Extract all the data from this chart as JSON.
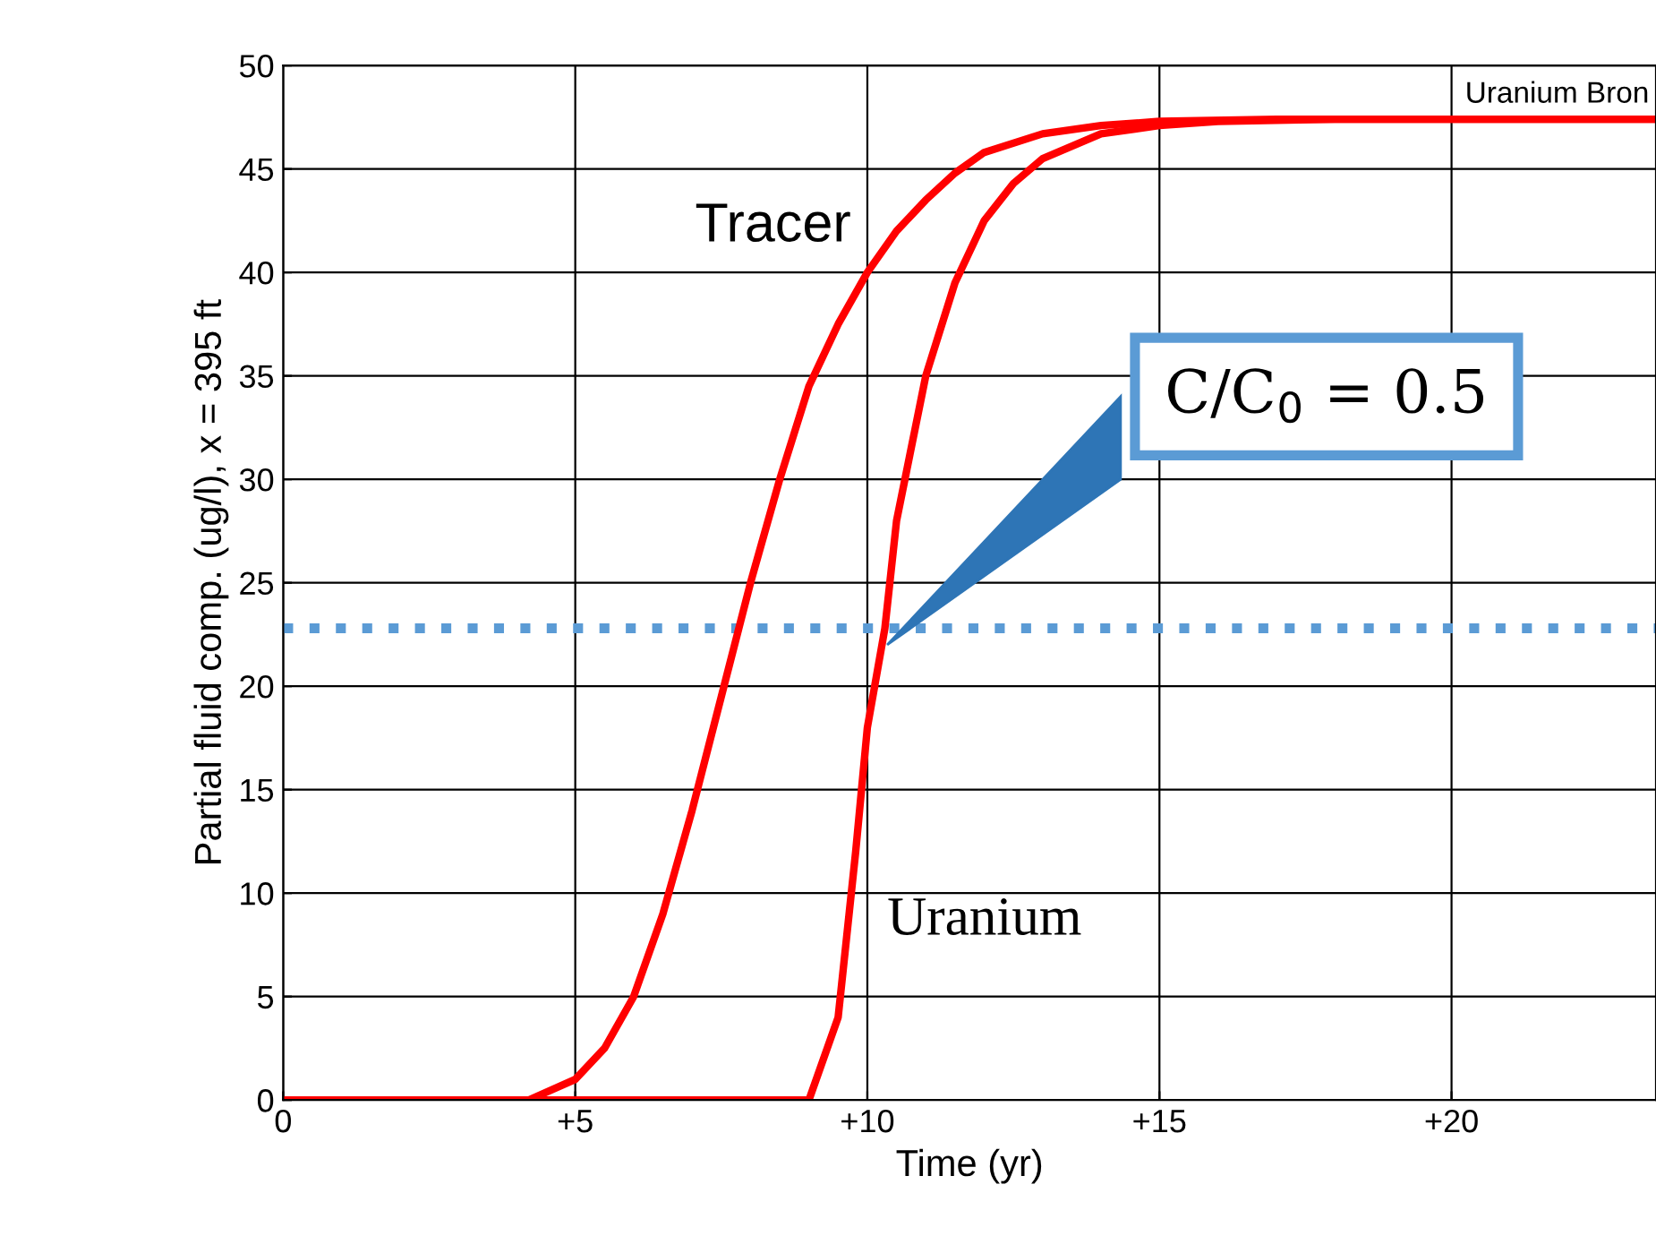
{
  "chart_data": {
    "type": "line",
    "xlabel": "Time (yr)",
    "ylabel": "Partial fluid comp. (ug/l), x = 395 ft",
    "xlim": [
      0,
      23.5
    ],
    "ylim": [
      0,
      50
    ],
    "xticks": [
      0,
      {
        "value": 5,
        "label": "+5"
      },
      {
        "value": 10,
        "label": "+10"
      },
      {
        "value": 15,
        "label": "+15"
      },
      {
        "value": 20,
        "label": "+20"
      }
    ],
    "yticks": [
      0,
      5,
      10,
      15,
      20,
      25,
      30,
      35,
      40,
      45,
      50
    ],
    "grid": true,
    "legend": false,
    "marker": "none",
    "line_style": "solid",
    "series": [
      {
        "name": "Tracer",
        "color": "#ff0000",
        "x": [
          0,
          4.2,
          5,
          5.5,
          6,
          6.5,
          7,
          7.5,
          8,
          8.5,
          9,
          9.5,
          10,
          10.5,
          11,
          11.5,
          12,
          13,
          14,
          15,
          17,
          23.5
        ],
        "values": [
          0,
          0,
          1,
          2.5,
          5,
          9,
          14,
          19.5,
          25,
          30,
          34.5,
          37.5,
          40,
          42,
          43.5,
          44.8,
          45.8,
          46.7,
          47.1,
          47.3,
          47.4,
          47.4
        ]
      },
      {
        "name": "Uranium",
        "color": "#ff0000",
        "x": [
          0,
          9,
          9.5,
          9.8,
          10,
          10.3,
          10.5,
          11,
          11.5,
          12,
          12.5,
          13,
          14,
          15,
          16,
          18,
          23.5
        ],
        "values": [
          0,
          0,
          4,
          12,
          18,
          22.8,
          28,
          35,
          39.5,
          42.5,
          44.3,
          45.5,
          46.7,
          47.1,
          47.3,
          47.4,
          47.4
        ]
      }
    ],
    "ref_lines": [
      {
        "axis": "y",
        "value": 22.8,
        "color": "#5b9bd5",
        "line_style": "dotted"
      }
    ],
    "annotations": [
      "Uranium Bron",
      "C/C$_{0}$ = 0.5"
    ]
  }
}
